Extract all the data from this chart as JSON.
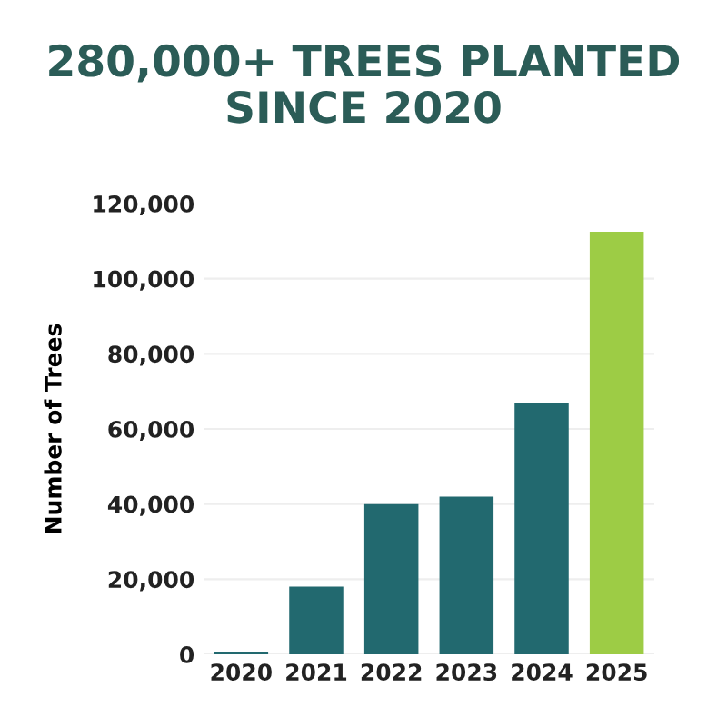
{
  "chart_data": {
    "type": "bar",
    "title": "280,000+ TREES PLANTED\nSINCE 2020",
    "ylabel": "Number of Trees",
    "categories": [
      "2020",
      "2021",
      "2022",
      "2023",
      "2024",
      "2025"
    ],
    "values": [
      700,
      18000,
      40000,
      42000,
      67000,
      112500
    ],
    "colors": [
      "#22696f",
      "#22696f",
      "#22696f",
      "#22696f",
      "#22696f",
      "#9dcc45"
    ],
    "ylim": [
      0,
      120000
    ],
    "yticks": [
      {
        "value": 0,
        "label": "0"
      },
      {
        "value": 20000,
        "label": "20,000"
      },
      {
        "value": 40000,
        "label": "40,000"
      },
      {
        "value": 60000,
        "label": "60,000"
      },
      {
        "value": 80000,
        "label": "80,000"
      },
      {
        "value": 100000,
        "label": "100,000"
      },
      {
        "value": 120000,
        "label": "120,000"
      }
    ],
    "grid": "y",
    "legend": false
  }
}
